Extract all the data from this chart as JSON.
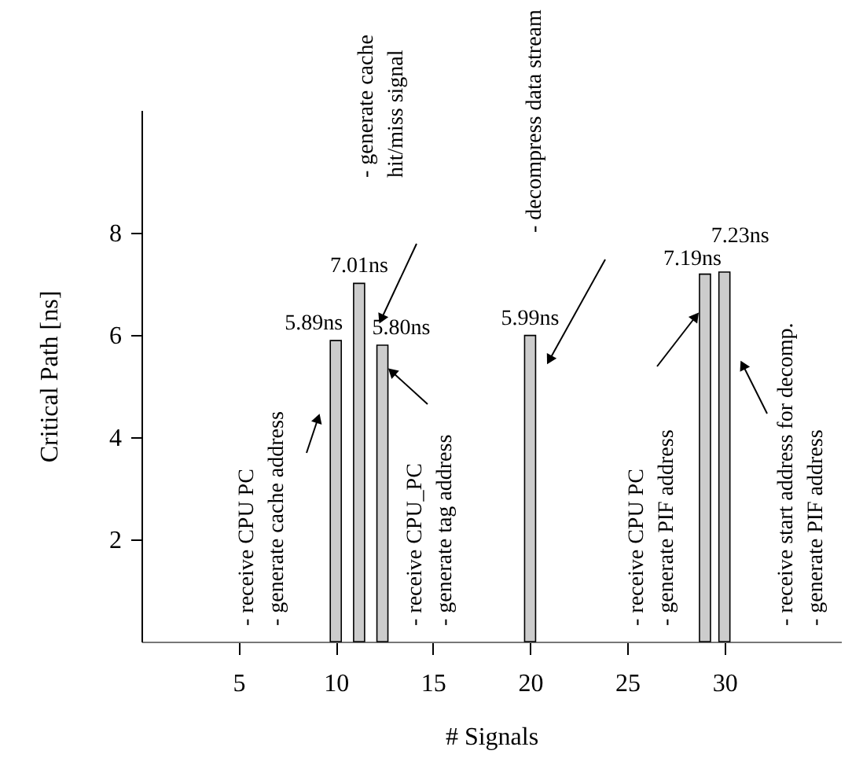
{
  "chart_data": {
    "type": "bar",
    "xlabel": "# Signals",
    "ylabel": "Critical Path [ns]",
    "x": [
      10,
      11.2,
      12.4,
      20,
      29,
      30
    ],
    "values": [
      5.89,
      7.01,
      5.8,
      5.99,
      7.19,
      7.23
    ],
    "value_labels": [
      "5.89ns",
      "7.01ns",
      "5.80ns",
      "5.99ns",
      "7.19ns",
      "7.23ns"
    ],
    "color": "#cccccc",
    "xlim": [
      0,
      36
    ],
    "xticks": [
      5,
      10,
      15,
      20,
      25,
      30
    ],
    "ylim": [
      0,
      10.4
    ],
    "yticks": [
      2,
      4,
      6,
      8
    ],
    "grid": false,
    "annotations": [
      "- receive CPU PC\n- generate cache address",
      "- generate cache\nhit/miss signal",
      "- receive CPU_PC\n- generate tag address",
      "- decompress data stream",
      "- receive CPU PC\n- generate PIF address",
      "- receive start address for decomp.\n- generate PIF address"
    ]
  }
}
